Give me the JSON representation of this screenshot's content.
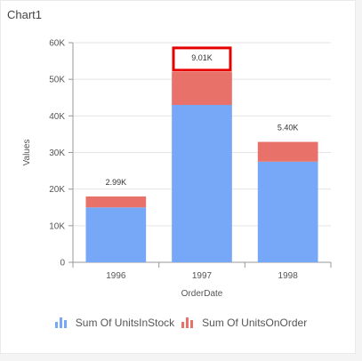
{
  "chart_title": "Chart1",
  "chart_data": {
    "type": "bar",
    "stacked": true,
    "categories": [
      "1996",
      "1997",
      "1998"
    ],
    "series": [
      {
        "name": "Sum Of UnitsInStock",
        "values": [
          15000,
          43000,
          27500
        ],
        "color": "#77a7f7"
      },
      {
        "name": "Sum Of UnitsOnOrder",
        "values": [
          2990,
          9010,
          5400
        ],
        "color": "#e87169"
      }
    ],
    "data_labels": [
      "2.99K",
      "9.01K",
      "5.40K"
    ],
    "highlighted_label_index": 1,
    "highlight_color": "#e60000",
    "xlabel": "OrderDate",
    "ylabel": "Values",
    "ylim": [
      0,
      60000
    ],
    "yticks": [
      "0",
      "10K",
      "20K",
      "30K",
      "40K",
      "50K",
      "60K"
    ],
    "grid": true,
    "legend_position": "bottom"
  }
}
